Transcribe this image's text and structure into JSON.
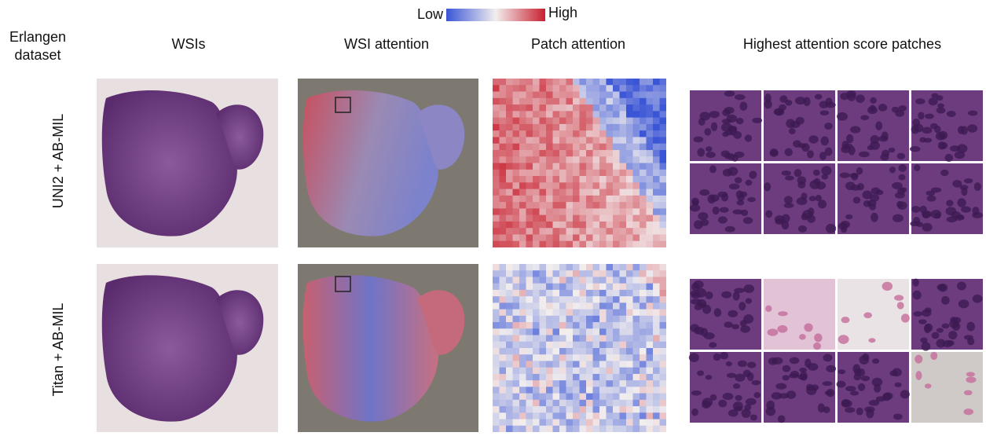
{
  "legend": {
    "low": "Low",
    "high": "High"
  },
  "corner_label": {
    "lines": [
      "Erlangen",
      "dataset"
    ]
  },
  "columns": [
    "WSIs",
    "WSI attention",
    "Patch attention",
    "Highest attention score patches"
  ],
  "rows": [
    "UNI2 + AB-MIL",
    "Titan + AB-MIL"
  ]
}
